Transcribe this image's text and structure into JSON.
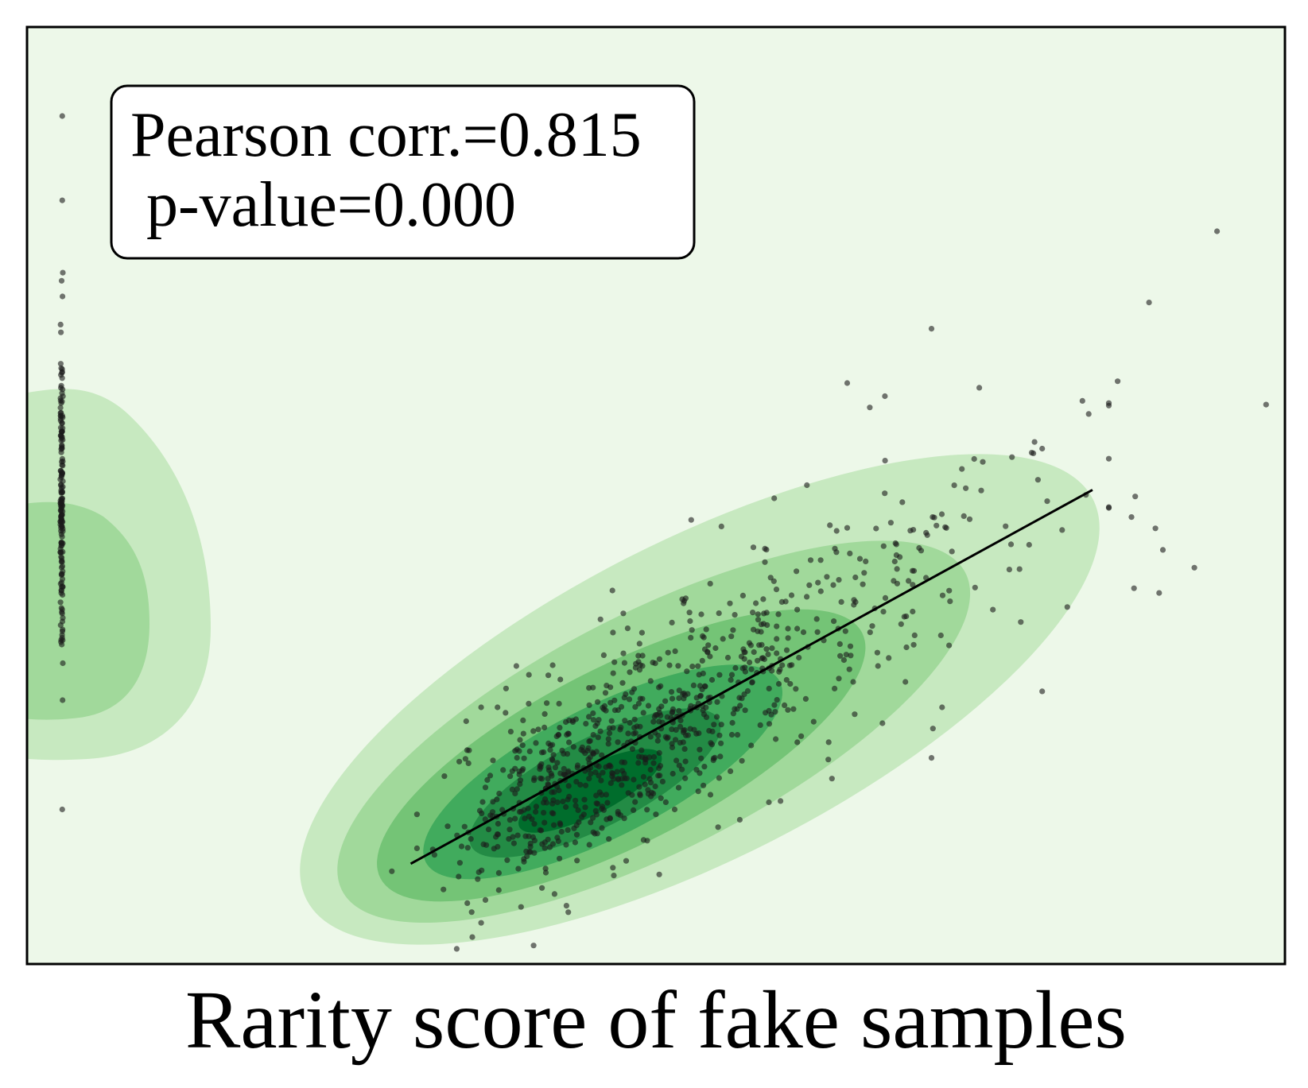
{
  "chart_data": {
    "type": "scatter",
    "title": "",
    "xlabel": "Rarity score of fake samples",
    "ylabel": "",
    "x_ticks": [],
    "y_ticks": [],
    "grid": false,
    "background": "#edf8e9",
    "kde_colors": [
      "#c7e9c0",
      "#a1d99b",
      "#74c476",
      "#41ab5d",
      "#238b45",
      "#006d2c"
    ],
    "annotation": {
      "line1": "Pearson corr.=0.815",
      "line2": " p-value=0.000"
    },
    "regression_line": {
      "x": [
        0.305,
        0.847
      ],
      "y": [
        0.107,
        0.506
      ]
    },
    "xlim": [
      0,
      1
    ],
    "ylim": [
      0,
      1
    ],
    "outliers": [
      [
        0.028,
        0.165
      ],
      [
        0.028,
        0.905
      ],
      [
        0.028,
        0.815
      ],
      [
        0.946,
        0.782
      ],
      [
        0.892,
        0.706
      ],
      [
        0.719,
        0.678
      ],
      [
        0.757,
        0.615
      ],
      [
        0.652,
        0.62
      ],
      [
        0.682,
        0.606
      ],
      [
        0.67,
        0.594
      ],
      [
        0.839,
        0.601
      ],
      [
        0.844,
        0.587
      ],
      [
        0.867,
        0.622
      ],
      [
        0.985,
        0.597
      ],
      [
        0.897,
        0.465
      ],
      [
        0.903,
        0.442
      ],
      [
        0.928,
        0.423
      ],
      [
        0.881,
        0.499
      ],
      [
        0.878,
        0.477
      ],
      [
        0.88,
        0.401
      ],
      [
        0.9,
        0.396
      ],
      [
        0.528,
        0.474
      ],
      [
        0.552,
        0.467
      ],
      [
        0.594,
        0.497
      ],
      [
        0.62,
        0.511
      ],
      [
        0.753,
        0.539
      ],
      [
        0.783,
        0.541
      ],
      [
        0.8,
        0.545
      ],
      [
        0.807,
        0.55
      ],
      [
        0.811,
        0.494
      ],
      [
        0.827,
        0.381
      ],
      [
        0.79,
        0.365
      ],
      [
        0.807,
        0.291
      ],
      [
        0.719,
        0.22
      ],
      [
        0.68,
        0.257
      ],
      [
        0.599,
        0.174
      ],
      [
        0.29,
        0.099
      ],
      [
        0.374,
        0.274
      ],
      [
        0.361,
        0.274
      ],
      [
        0.733,
        0.34
      ]
    ]
  }
}
